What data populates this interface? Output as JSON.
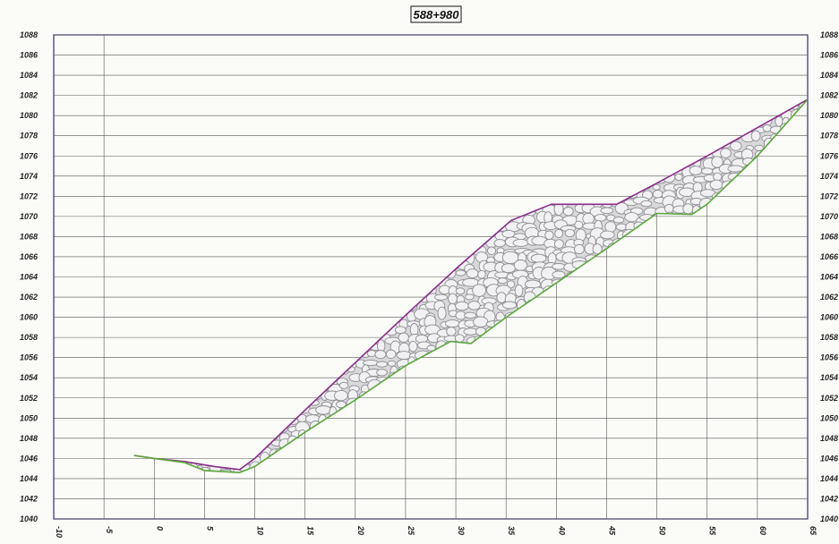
{
  "chart_data": {
    "type": "area",
    "title": "588+980",
    "xlabel": "",
    "ylabel": "",
    "xlim": [
      -10,
      65
    ],
    "ylim": [
      1040,
      1088
    ],
    "x_ticks": [
      -10,
      -5,
      0,
      5,
      10,
      15,
      20,
      25,
      30,
      35,
      40,
      45,
      50,
      55,
      60,
      65
    ],
    "y_ticks": [
      1040,
      1042,
      1044,
      1046,
      1048,
      1050,
      1052,
      1054,
      1056,
      1058,
      1060,
      1062,
      1064,
      1066,
      1068,
      1070,
      1072,
      1074,
      1076,
      1078,
      1080,
      1082,
      1084,
      1086,
      1088
    ],
    "grid": true,
    "fill_pattern": "cobble-stones",
    "series": [
      {
        "color": "#8a2d8a",
        "x": [
          -2,
          0,
          3,
          6,
          8.5,
          10,
          15,
          20,
          25,
          30,
          35.5,
          39.5,
          46,
          50,
          55,
          60,
          65
        ],
        "y": [
          1046.3,
          1046.0,
          1045.7,
          1045.2,
          1044.9,
          1046.0,
          1050.8,
          1055.5,
          1060.2,
          1064.8,
          1069.6,
          1071.2,
          1071.2,
          1073.3,
          1076.0,
          1078.8,
          1081.6
        ]
      },
      {
        "color": "#5aa83a",
        "x": [
          -2,
          0,
          3,
          5,
          8.5,
          10,
          15,
          20,
          25,
          29.5,
          31.5,
          35,
          40,
          45,
          50,
          53.5,
          55,
          60,
          65
        ],
        "y": [
          1046.3,
          1046.0,
          1045.6,
          1044.8,
          1044.6,
          1045.2,
          1048.6,
          1051.8,
          1055.2,
          1057.6,
          1057.4,
          1060.0,
          1063.4,
          1066.8,
          1070.3,
          1070.2,
          1071.2,
          1076.0,
          1081.6
        ]
      }
    ]
  }
}
